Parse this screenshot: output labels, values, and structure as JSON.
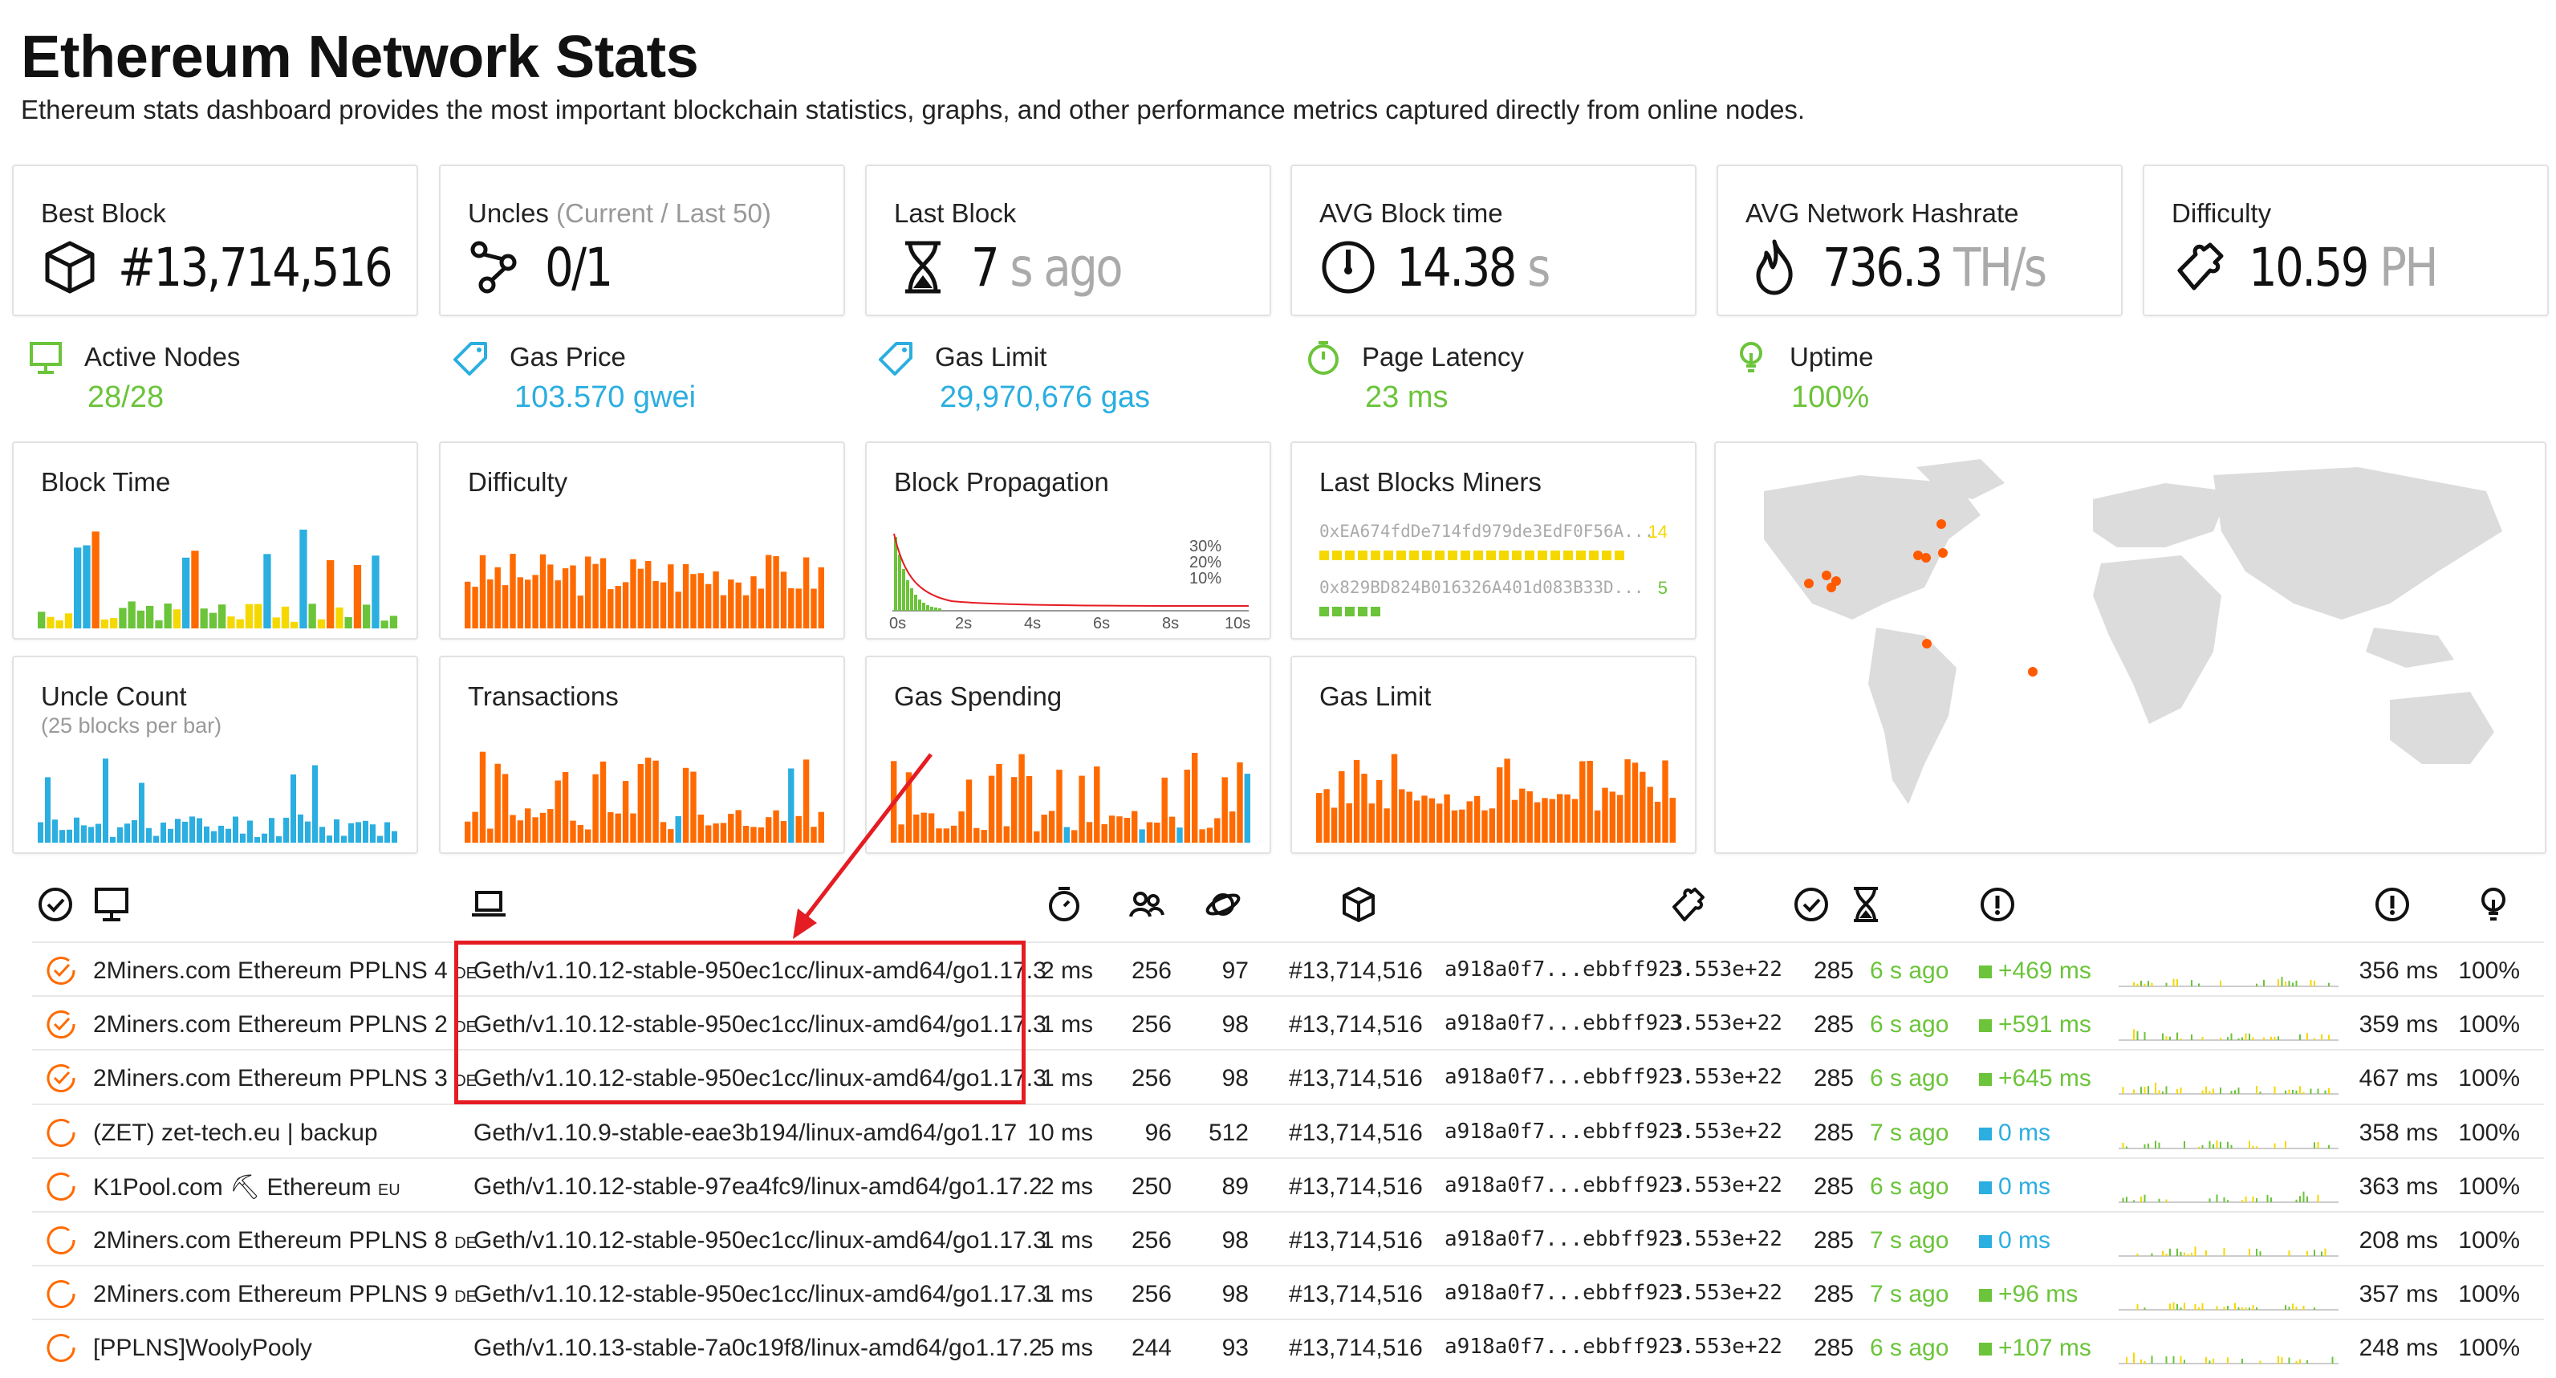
{
  "page": {
    "title": "Ethereum Network Stats",
    "subtitle": "Ethereum stats dashboard provides the most important blockchain statistics, graphs, and other performance metrics captured directly from online nodes."
  },
  "stats": [
    {
      "label": "Best Block",
      "muted": "",
      "value": "#13,714,516",
      "unit": "",
      "icon": "cube-icon"
    },
    {
      "label": "Uncles",
      "muted": "(Current / Last 50)",
      "value": "0/1",
      "unit": "",
      "icon": "uncles-icon"
    },
    {
      "label": "Last Block",
      "muted": "",
      "value": "7",
      "unit": "s ago",
      "icon": "hourglass-icon"
    },
    {
      "label": "AVG Block time",
      "muted": "",
      "value": "14.38",
      "unit": "s",
      "icon": "gauge-icon"
    },
    {
      "label": "AVG Network Hashrate",
      "muted": "",
      "value": "736.3",
      "unit": "TH/s",
      "icon": "flame-icon"
    },
    {
      "label": "Difficulty",
      "muted": "",
      "value": "10.59",
      "unit": "PH",
      "icon": "puzzle-icon"
    }
  ],
  "minis": [
    {
      "label": "Active Nodes",
      "value": "28/28",
      "icon": "monitor-icon"
    },
    {
      "label": "Gas Price",
      "value": "103.570 gwei",
      "icon": "tag-icon"
    },
    {
      "label": "Gas Limit",
      "value": "29,970,676 gas",
      "icon": "tag-icon"
    },
    {
      "label": "Page Latency",
      "value": "23 ms",
      "icon": "timer-icon"
    },
    {
      "label": "Uptime",
      "value": "100%",
      "icon": "bulb-icon"
    }
  ],
  "charts": {
    "block_time": {
      "title": "Block Time"
    },
    "difficulty": {
      "title": "Difficulty"
    },
    "propagation": {
      "title": "Block Propagation",
      "pct": [
        "30%",
        "20%",
        "10%"
      ],
      "ticks": [
        "0s",
        "2s",
        "4s",
        "6s",
        "8s",
        "10s"
      ]
    },
    "miners": {
      "title": "Last Blocks Miners",
      "list": [
        {
          "addr": "0xEA674fdDe714fd979de3EdF0F56A...",
          "count": "14"
        },
        {
          "addr": "0x829BD824B016326A401d083B33D...",
          "count": "5"
        }
      ]
    },
    "uncle_count": {
      "title": "Uncle Count",
      "sub": "(25 blocks per bar)"
    },
    "transactions": {
      "title": "Transactions"
    },
    "gas_spending": {
      "title": "Gas Spending"
    },
    "gas_limit": {
      "title": "Gas Limit"
    }
  },
  "table": {
    "rows": [
      {
        "name": "2Miners.com Ethereum PPLNS 4",
        "cc": "DE",
        "client": "Geth/v1.10.12-stable-950ec1cc/linux-amd64/go1.17.3",
        "lat": "2 ms",
        "peers": "256",
        "pending": "97",
        "block": "#13,714,516",
        "hash": "a918a0f7...ebbff923",
        "diff": "3.553e+22",
        "txs": "285",
        "ago": "6 s ago",
        "prop": "+469 ms",
        "prop_color": "green",
        "resp": "356 ms",
        "up": "100%",
        "status": "checked"
      },
      {
        "name": "2Miners.com Ethereum PPLNS 2",
        "cc": "DE",
        "client": "Geth/v1.10.12-stable-950ec1cc/linux-amd64/go1.17.3",
        "lat": "1 ms",
        "peers": "256",
        "pending": "98",
        "block": "#13,714,516",
        "hash": "a918a0f7...ebbff923",
        "diff": "3.553e+22",
        "txs": "285",
        "ago": "6 s ago",
        "prop": "+591 ms",
        "prop_color": "green",
        "resp": "359 ms",
        "up": "100%",
        "status": "checked"
      },
      {
        "name": "2Miners.com Ethereum PPLNS 3",
        "cc": "DE",
        "client": "Geth/v1.10.12-stable-950ec1cc/linux-amd64/go1.17.3",
        "lat": "1 ms",
        "peers": "256",
        "pending": "98",
        "block": "#13,714,516",
        "hash": "a918a0f7...ebbff923",
        "diff": "3.553e+22",
        "txs": "285",
        "ago": "6 s ago",
        "prop": "+645 ms",
        "prop_color": "green",
        "resp": "467 ms",
        "up": "100%",
        "status": "checked"
      },
      {
        "name": "(ZET) zet-tech.eu | backup",
        "cc": "",
        "client": "Geth/v1.10.9-stable-eae3b194/linux-amd64/go1.17",
        "lat": "10 ms",
        "peers": "96",
        "pending": "512",
        "block": "#13,714,516",
        "hash": "a918a0f7...ebbff923",
        "diff": "3.553e+22",
        "txs": "285",
        "ago": "7 s ago",
        "prop": "0 ms",
        "prop_color": "blue",
        "resp": "358 ms",
        "up": "100%",
        "status": "open"
      },
      {
        "name": "K1Pool.com ⛏ Ethereum",
        "cc": "EU",
        "client": "Geth/v1.10.12-stable-97ea4fc9/linux-amd64/go1.17.2",
        "lat": "2 ms",
        "peers": "250",
        "pending": "89",
        "block": "#13,714,516",
        "hash": "a918a0f7...ebbff923",
        "diff": "3.553e+22",
        "txs": "285",
        "ago": "6 s ago",
        "prop": "0 ms",
        "prop_color": "blue",
        "resp": "363 ms",
        "up": "100%",
        "status": "open"
      },
      {
        "name": "2Miners.com Ethereum PPLNS 8",
        "cc": "DE",
        "client": "Geth/v1.10.12-stable-950ec1cc/linux-amd64/go1.17.3",
        "lat": "1 ms",
        "peers": "256",
        "pending": "98",
        "block": "#13,714,516",
        "hash": "a918a0f7...ebbff923",
        "diff": "3.553e+22",
        "txs": "285",
        "ago": "7 s ago",
        "prop": "0 ms",
        "prop_color": "blue",
        "resp": "208 ms",
        "up": "100%",
        "status": "open"
      },
      {
        "name": "2Miners.com Ethereum PPLNS 9",
        "cc": "DE",
        "client": "Geth/v1.10.12-stable-950ec1cc/linux-amd64/go1.17.3",
        "lat": "1 ms",
        "peers": "256",
        "pending": "98",
        "block": "#13,714,516",
        "hash": "a918a0f7...ebbff923",
        "diff": "3.553e+22",
        "txs": "285",
        "ago": "7 s ago",
        "prop": "+96 ms",
        "prop_color": "green",
        "resp": "357 ms",
        "up": "100%",
        "status": "open"
      },
      {
        "name": "[PPLNS]WoolyPooly",
        "cc": "",
        "client": "Geth/v1.10.13-stable-7a0c19f8/linux-amd64/go1.17.2",
        "lat": "5 ms",
        "peers": "244",
        "pending": "93",
        "block": "#13,714,516",
        "hash": "a918a0f7...ebbff923",
        "diff": "3.553e+22",
        "txs": "285",
        "ago": "6 s ago",
        "prop": "+107 ms",
        "prop_color": "green",
        "resp": "248 ms",
        "up": "100%",
        "status": "open"
      }
    ]
  },
  "colors": {
    "green": "#6bc43a",
    "blue": "#2baee0",
    "orange": "#ff6a00",
    "yellow": "#f5d800",
    "red": "#e51c23"
  }
}
